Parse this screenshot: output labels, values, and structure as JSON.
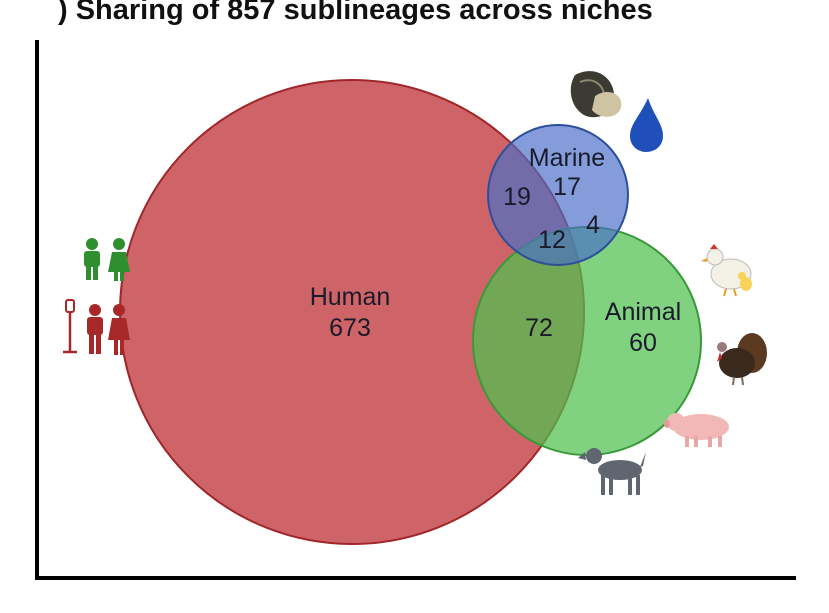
{
  "title": ") Sharing of 857 sublineages across niches",
  "sets": {
    "human": {
      "label": "Human",
      "only": "673",
      "color": "#c0383c"
    },
    "marine": {
      "label": "Marine",
      "only": "17",
      "color": "#4a6fc9"
    },
    "animal": {
      "label": "Animal",
      "only": "60",
      "color": "#4fc04f"
    }
  },
  "overlaps": {
    "human_marine": "19",
    "marine_animal": "4",
    "human_marine_animal": "12",
    "human_animal": "72"
  },
  "icons": {
    "human": [
      "healthy-people-icon",
      "hospitalized-patients-icon"
    ],
    "marine": [
      "mussel-icon",
      "water-drop-icon"
    ],
    "animal": [
      "chicken-icon",
      "turkey-icon",
      "pig-icon",
      "dog-icon"
    ]
  },
  "colors": {
    "drop": "#1f4fb8",
    "healthy": "#2f8f2f",
    "patient": "#a8282a",
    "axis": "#000000"
  }
}
